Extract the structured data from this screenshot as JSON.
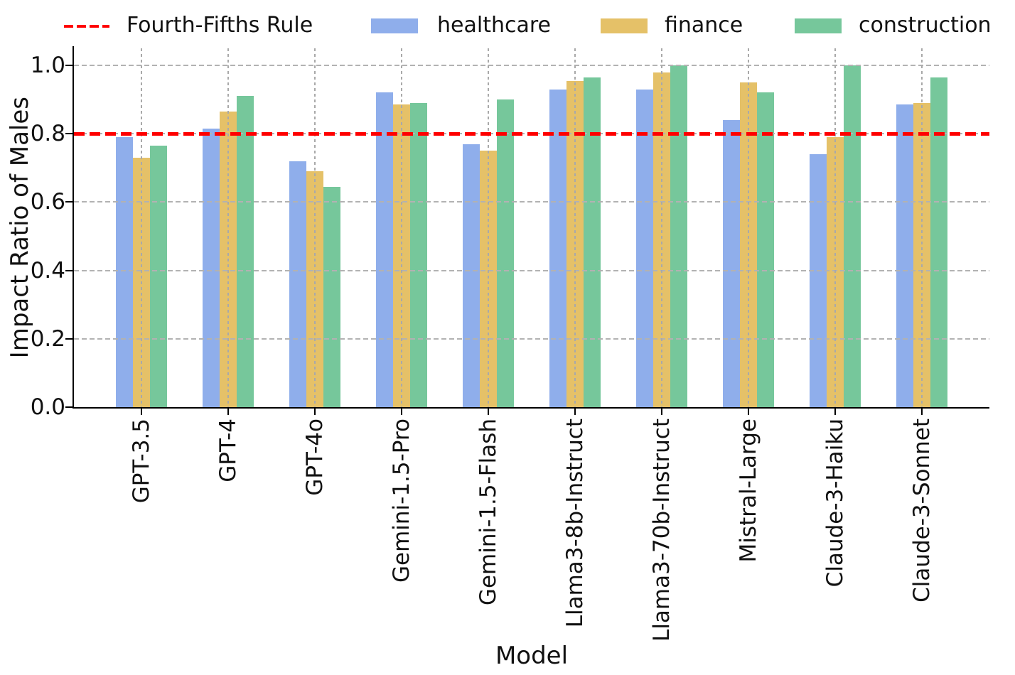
{
  "chart_data": {
    "type": "bar",
    "title": "",
    "xlabel": "Model",
    "ylabel": "Impact Ratio of Males",
    "ylim": [
      0,
      1.05
    ],
    "yticks": [
      0.0,
      0.2,
      0.4,
      0.6,
      0.8,
      1.0
    ],
    "grid": true,
    "legend_position": "top",
    "categories": [
      "GPT-3.5",
      "GPT-4",
      "GPT-4o",
      "Gemini-1.5-Pro",
      "Gemini-1.5-Flash",
      "Llama3-8b-Instruct",
      "Llama3-70b-Instruct",
      "Mistral-Large",
      "Claude-3-Haiku",
      "Claude-3-Sonnet"
    ],
    "series": [
      {
        "name": "healthcare",
        "color": "#8FAEEB",
        "values": [
          0.79,
          0.815,
          0.72,
          0.92,
          0.77,
          0.93,
          0.93,
          0.84,
          0.74,
          0.885
        ]
      },
      {
        "name": "finance",
        "color": "#E5C168",
        "values": [
          0.73,
          0.865,
          0.69,
          0.885,
          0.75,
          0.955,
          0.98,
          0.95,
          0.79,
          0.89
        ]
      },
      {
        "name": "construction",
        "color": "#76C79B",
        "values": [
          0.765,
          0.91,
          0.645,
          0.89,
          0.9,
          0.965,
          1.0,
          0.92,
          1.0,
          0.965
        ]
      }
    ],
    "reference_line": {
      "label": "Fourth-Fifths Rule",
      "value": 0.8,
      "color": "#FF0000",
      "style": "dashed"
    }
  },
  "colors": {
    "grid": "#b2b2b2",
    "axis": "#000000",
    "text": "#111111"
  }
}
